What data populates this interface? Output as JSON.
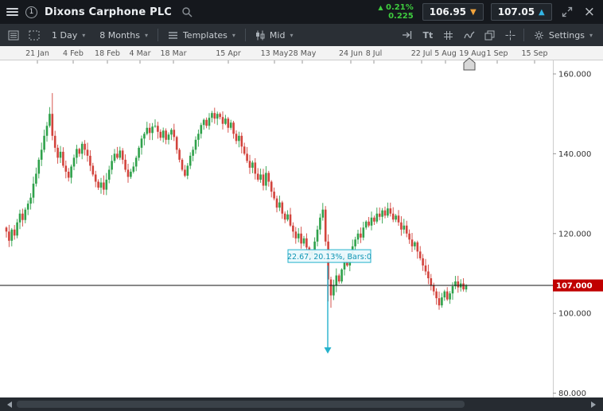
{
  "topbar": {
    "instrument_badge": "1",
    "title": "Dixons Carphone PLC",
    "change_percent": "0.21%",
    "change_value": "0.225",
    "sell_price": "106.95",
    "buy_price": "107.05"
  },
  "toolbar": {
    "period_label": "1 Day",
    "range_label": "8 Months",
    "templates_label": "Templates",
    "price_type_label": "Mid",
    "settings_label": "Settings",
    "text_tool_label": "Tt"
  },
  "icons": {
    "up_triangle": "▲",
    "down_arrow": "▼",
    "up_arrow": "▲",
    "close": "×",
    "caret": "▾"
  },
  "chart": {
    "x_labels": [
      "21 Jan",
      "4 Feb",
      "18 Feb",
      "4 Mar",
      "18 Mar",
      "15 Apr",
      "13 May",
      "28 May",
      "24 Jun",
      "8 Jul",
      "22 Jul",
      "5 Aug",
      "19 Aug",
      "1 Sep",
      "15 Sep"
    ],
    "current_price_label": "107.000",
    "measure_label": "22.67, 20.13%, Bars:0",
    "colors": {
      "up": "#2fa14b",
      "down": "#d2433c",
      "measure": "#25b2cc",
      "measure_text": "#0f95b4",
      "measure_fill": "#e9f8fc",
      "price_line": "#111111",
      "price_badge": "#c00000"
    }
  },
  "chart_data": {
    "type": "candlestick",
    "instrument": "Dixons Carphone PLC",
    "period": "1 Day",
    "range": "8 Months",
    "price_ticks": [
      {
        "value": 160,
        "label": "160.000"
      },
      {
        "value": 140,
        "label": "140.000"
      },
      {
        "value": 120,
        "label": "120.000"
      },
      {
        "value": 100,
        "label": "100.000"
      },
      {
        "value": 80,
        "label": "80.000"
      }
    ],
    "current_price": 107.0,
    "first_open": 121.5,
    "closes": [
      120.5,
      118.2,
      121.0,
      119.5,
      122.8,
      125.0,
      123.4,
      126.0,
      127.5,
      129.0,
      132.5,
      135.0,
      138.5,
      141.0,
      144.5,
      147.0,
      150.0,
      144.5,
      141.5,
      139.0,
      140.5,
      137.0,
      135.5,
      134.0,
      136.8,
      139.0,
      141.2,
      140.0,
      142.5,
      141.0,
      139.5,
      137.0,
      134.8,
      133.0,
      131.5,
      132.8,
      131.0,
      133.5,
      136.0,
      138.2,
      140.0,
      139.0,
      140.8,
      138.5,
      136.0,
      134.2,
      135.5,
      136.8,
      139.0,
      141.5,
      143.8,
      145.0,
      146.5,
      145.2,
      146.8,
      147.0,
      145.5,
      144.0,
      145.8,
      143.5,
      144.8,
      146.0,
      144.2,
      141.0,
      138.5,
      136.0,
      134.5,
      137.0,
      139.5,
      141.0,
      143.5,
      145.0,
      147.2,
      148.5,
      147.0,
      149.0,
      150.2,
      148.8,
      150.0,
      149.2,
      147.5,
      148.8,
      146.5,
      147.8,
      145.0,
      143.2,
      144.5,
      141.8,
      140.0,
      138.2,
      136.5,
      137.8,
      135.0,
      133.5,
      134.8,
      132.0,
      135.2,
      133.0,
      130.5,
      128.8,
      126.5,
      127.8,
      125.0,
      123.5,
      124.8,
      122.0,
      120.5,
      118.8,
      120.0,
      117.5,
      118.8,
      116.5,
      114.8,
      115.5,
      118.0,
      121.0,
      124.0,
      126.0,
      118.0,
      108.5,
      104.5,
      107.0,
      109.5,
      108.0,
      111.0,
      113.5,
      112.0,
      114.5,
      116.8,
      118.5,
      120.0,
      119.0,
      121.5,
      123.0,
      122.0,
      124.0,
      123.0,
      125.0,
      124.2,
      125.8,
      124.5,
      126.3,
      125.0,
      123.5,
      124.5,
      122.8,
      121.0,
      122.0,
      120.0,
      118.5,
      116.8,
      117.8,
      115.5,
      113.8,
      112.0,
      110.5,
      108.8,
      107.0,
      105.5,
      103.8,
      102.0,
      104.0,
      105.5,
      103.5,
      105.0,
      106.8,
      108.0,
      106.5,
      107.5,
      106.0,
      107.0
    ],
    "special_wicks": [
      {
        "index": 17,
        "high": 155.2
      },
      {
        "index": 119,
        "low": 103.0
      },
      {
        "index": 120,
        "low": 101.4
      },
      {
        "index": 160,
        "low": 100.9
      }
    ],
    "measurement": {
      "value": 22.67,
      "percent": 20.13,
      "bars": 0,
      "from_price": 112.57,
      "to_price": 89.9
    }
  }
}
